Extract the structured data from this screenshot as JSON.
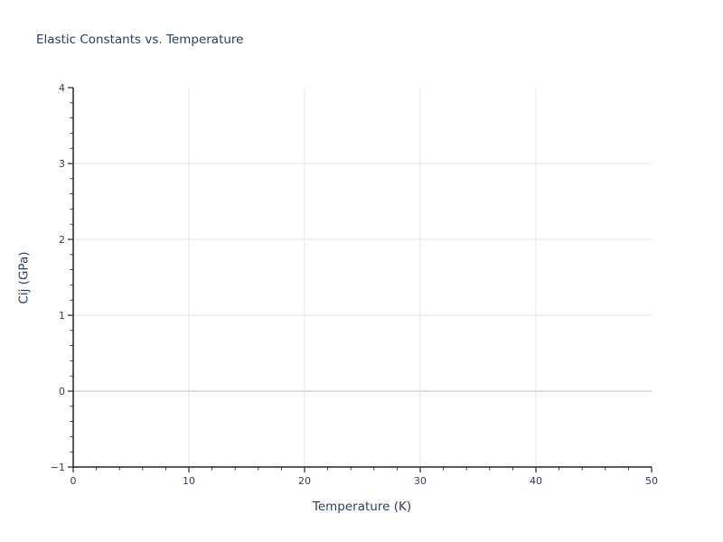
{
  "chart_data": {
    "type": "scatter",
    "title": "Elastic Constants vs. Temperature",
    "xlabel": "Temperature (K)",
    "ylabel": "Cij (GPa)",
    "xlim": [
      0,
      50
    ],
    "ylim": [
      -1,
      4
    ],
    "xticks": [
      0,
      10,
      20,
      30,
      40,
      50
    ],
    "yticks": [
      -1,
      0,
      1,
      2,
      3,
      4
    ],
    "x_minor_step": 2,
    "y_minor_step": 0.2,
    "grid": true,
    "zeroline": true,
    "legend": false,
    "series": [],
    "colors": {
      "text": "#2a3f5f",
      "axis": "#262626",
      "grid": "#e6e6e6",
      "zeroline": "#d3d3d3",
      "background": "#ffffff"
    }
  }
}
